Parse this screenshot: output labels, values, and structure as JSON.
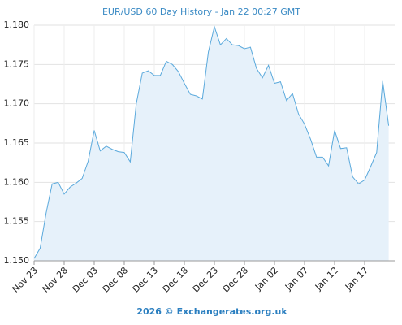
{
  "chart_data": {
    "type": "area",
    "title": "EUR/USD 60 Day History - Jan 22 00:27 GMT",
    "footer": "2026 © Exchangerates.org.uk",
    "categories": [
      "Nov 23",
      null,
      null,
      null,
      null,
      "Nov 28",
      null,
      null,
      null,
      null,
      "Dec 03",
      null,
      null,
      null,
      null,
      "Dec 08",
      null,
      null,
      null,
      null,
      "Dec 13",
      null,
      null,
      null,
      null,
      "Dec 18",
      null,
      null,
      null,
      null,
      "Dec 23",
      null,
      null,
      null,
      null,
      "Dec 28",
      null,
      null,
      null,
      null,
      "Jan 02",
      null,
      null,
      null,
      null,
      "Jan 07",
      null,
      null,
      null,
      null,
      "Jan 12",
      null,
      null,
      null,
      null,
      "Jan 17",
      null,
      null,
      null,
      null
    ],
    "series": [
      {
        "name": "EUR/USD",
        "color": "#5aa9dc",
        "fill": "#e6f1fa",
        "values": [
          1.1503,
          1.1516,
          1.1561,
          1.1598,
          1.16,
          1.1585,
          1.1594,
          1.1599,
          1.1605,
          1.1627,
          1.1666,
          1.164,
          1.1646,
          1.1642,
          1.1639,
          1.1638,
          1.1626,
          1.17,
          1.1739,
          1.1742,
          1.1736,
          1.1736,
          1.1754,
          1.175,
          1.1741,
          1.1726,
          1.1712,
          1.171,
          1.1706,
          1.1766,
          1.1798,
          1.1775,
          1.1783,
          1.1775,
          1.1774,
          1.177,
          1.1772,
          1.1745,
          1.1733,
          1.1749,
          1.1726,
          1.1728,
          1.1704,
          1.1713,
          1.1687,
          1.1674,
          1.1655,
          1.1632,
          1.1632,
          1.1621,
          1.1666,
          1.1643,
          1.1644,
          1.1607,
          1.1598,
          1.1603,
          1.162,
          1.1638,
          1.1729,
          1.1672
        ]
      }
    ],
    "ylim": [
      1.15,
      1.18
    ],
    "yticks": [
      {
        "value": 1.15,
        "label": "1.150"
      },
      1.155,
      {
        "value": 1.16,
        "label": "1.160"
      },
      1.165,
      {
        "value": 1.17,
        "label": "1.170"
      },
      1.175,
      {
        "value": 1.18,
        "label": "1.180"
      }
    ],
    "grid": true
  }
}
